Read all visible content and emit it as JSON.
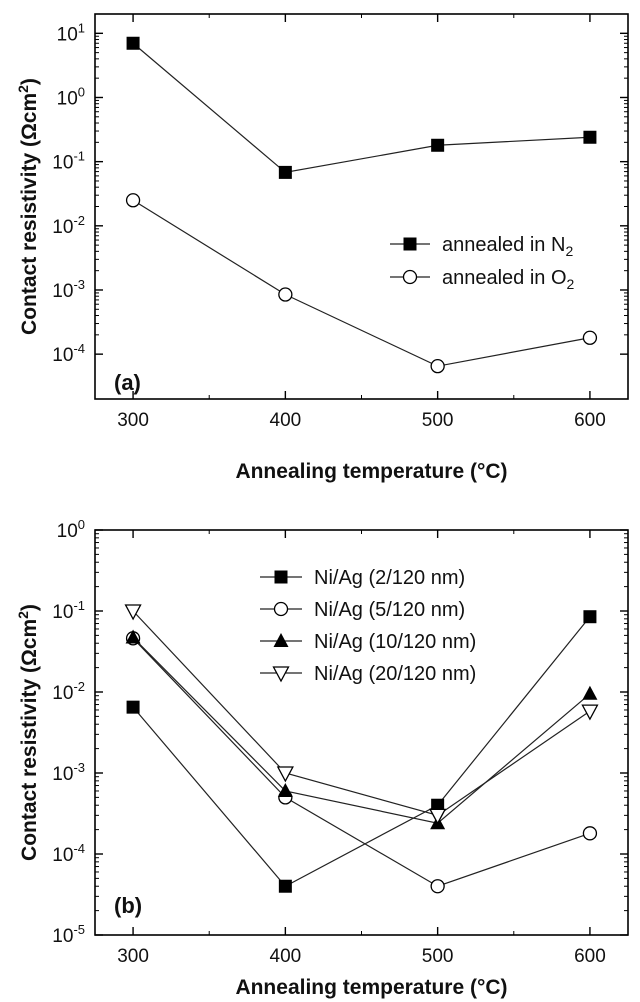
{
  "chart_data": [
    {
      "type": "line",
      "panel_label": "(a)",
      "xlabel": "Annealing temperature (°C)",
      "ylabel": "Contact resistivity (Ωcm²)",
      "y_scale": "log",
      "x": [
        300,
        400,
        500,
        600
      ],
      "x_ticks": [
        300,
        400,
        500,
        600
      ],
      "xlim": [
        275,
        625
      ],
      "ylim": [
        2e-05,
        20
      ],
      "y_tick_exponents": [
        -4,
        -3,
        -2,
        -1,
        0,
        1
      ],
      "grid": false,
      "legend_position": "right",
      "series": [
        {
          "name": "annealed in N2",
          "marker": "filled-square",
          "values": [
            7.0,
            0.068,
            0.18,
            0.24
          ]
        },
        {
          "name": "annealed in O2",
          "marker": "open-circle",
          "values": [
            0.025,
            0.00085,
            6.5e-05,
            0.00018
          ]
        }
      ]
    },
    {
      "type": "line",
      "panel_label": "(b)",
      "xlabel": "Annealing temperature (°C)",
      "ylabel": "Contact resistivity (Ωcm²)",
      "y_scale": "log",
      "x": [
        300,
        400,
        500,
        600
      ],
      "x_ticks": [
        300,
        400,
        500,
        600
      ],
      "xlim": [
        275,
        625
      ],
      "ylim": [
        1e-05,
        1
      ],
      "y_tick_exponents": [
        -5,
        -4,
        -3,
        -2,
        -1,
        0
      ],
      "grid": false,
      "legend_position": "top-center",
      "series": [
        {
          "name": "Ni/Ag (2/120 nm)",
          "marker": "filled-square",
          "values": [
            0.0065,
            4e-05,
            0.0004,
            0.085
          ]
        },
        {
          "name": "Ni/Ag (5/120 nm)",
          "marker": "open-circle",
          "values": [
            0.046,
            0.0005,
            4e-05,
            0.00018
          ]
        },
        {
          "name": "Ni/Ag (10/120 nm)",
          "marker": "filled-triangle-up",
          "values": [
            0.047,
            0.0006,
            0.00024,
            0.0095
          ]
        },
        {
          "name": "Ni/Ag (20/120 nm)",
          "marker": "open-triangle-down",
          "values": [
            0.1,
            0.001,
            0.0003,
            0.0058
          ]
        }
      ]
    }
  ]
}
